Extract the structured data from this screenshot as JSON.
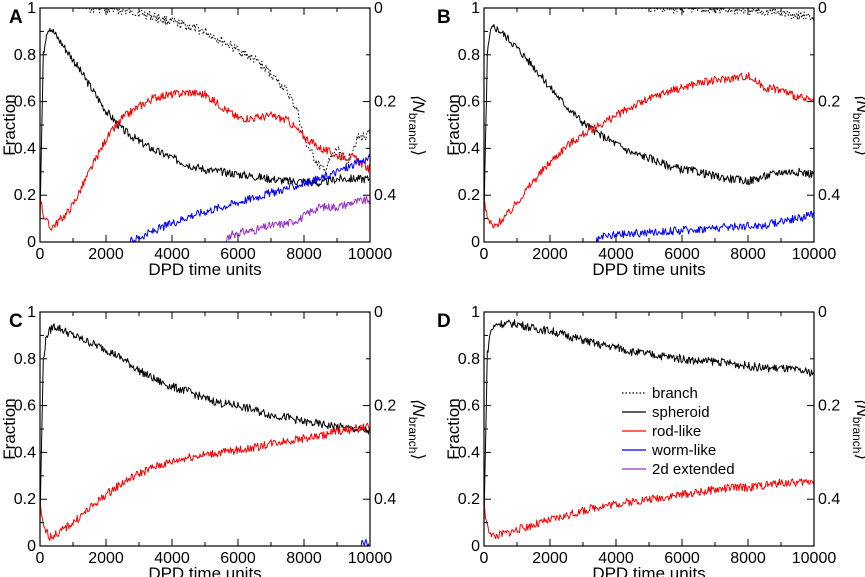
{
  "colors": {
    "branch": "#000000",
    "spheroid": "#000000",
    "rod-like": "#ff0000",
    "worm-like": "#0000ff",
    "2d extended": "#9932cc"
  },
  "legend": [
    "branch",
    "spheroid",
    "rod-like",
    "worm-like",
    "2d extended"
  ],
  "chart_data": [
    {
      "panel": "A",
      "type": "line",
      "xlabel": "DPD time units",
      "ylabel": "Fraction",
      "ylabel_right": "⟨N",
      "ylabel_right_sub": "branch",
      "ylabel_right_close": "⟩",
      "xlim": [
        0,
        10000
      ],
      "ylim": [
        0,
        1
      ],
      "ylim_right": [
        0,
        0.5
      ],
      "x_ticks": [
        "0",
        "2000",
        "4000",
        "6000",
        "8000",
        "10000"
      ],
      "y_ticks": [
        "0",
        "0.2",
        "0.4",
        "0.6",
        "0.8",
        "1"
      ],
      "y_ticks_right": [
        "0",
        "0.2",
        "0.4"
      ],
      "series": [
        {
          "name": "branch",
          "style": "dotted",
          "axis": "right",
          "x": [
            0,
            500,
            1000,
            2000,
            3000,
            4000,
            5000,
            5500,
            6000,
            6500,
            7000,
            7500,
            7800,
            8000,
            8300,
            8600,
            9000,
            9300,
            9600,
            10000
          ],
          "values": [
            0,
            0,
            0,
            0.002,
            0.01,
            0.03,
            0.05,
            0.07,
            0.09,
            0.11,
            0.14,
            0.18,
            0.22,
            0.28,
            0.32,
            0.35,
            0.3,
            0.33,
            0.28,
            0.27
          ]
        },
        {
          "name": "spheroid",
          "style": "solid",
          "x": [
            0,
            100,
            200,
            300,
            400,
            600,
            800,
            1000,
            1500,
            2000,
            2500,
            3000,
            3500,
            4000,
            4500,
            5000,
            5500,
            6000,
            6500,
            7000,
            7500,
            8000,
            8500,
            9000,
            9500,
            10000
          ],
          "values": [
            0.1,
            0.8,
            0.9,
            0.92,
            0.9,
            0.86,
            0.82,
            0.78,
            0.67,
            0.56,
            0.48,
            0.43,
            0.39,
            0.36,
            0.33,
            0.31,
            0.3,
            0.29,
            0.28,
            0.27,
            0.26,
            0.26,
            0.25,
            0.27,
            0.27,
            0.27
          ]
        },
        {
          "name": "rod-like",
          "style": "solid",
          "x": [
            0,
            100,
            300,
            500,
            800,
            1000,
            1500,
            2000,
            2500,
            3000,
            3500,
            4000,
            4500,
            5000,
            5500,
            6000,
            6500,
            7000,
            7500,
            8000,
            8500,
            9000,
            9500,
            10000
          ],
          "values": [
            0.2,
            0.12,
            0.06,
            0.08,
            0.12,
            0.16,
            0.3,
            0.44,
            0.53,
            0.58,
            0.62,
            0.63,
            0.64,
            0.63,
            0.58,
            0.53,
            0.53,
            0.54,
            0.52,
            0.45,
            0.4,
            0.37,
            0.36,
            0.31
          ]
        },
        {
          "name": "worm-like",
          "style": "solid",
          "x": [
            0,
            2700,
            3000,
            3500,
            4000,
            4500,
            5000,
            5500,
            6000,
            6500,
            7000,
            7500,
            8000,
            8500,
            9000,
            9500,
            10000
          ],
          "values": [
            0,
            0,
            0.02,
            0.05,
            0.08,
            0.11,
            0.13,
            0.15,
            0.17,
            0.19,
            0.21,
            0.23,
            0.25,
            0.27,
            0.3,
            0.33,
            0.36
          ]
        },
        {
          "name": "2d extended",
          "style": "solid",
          "x": [
            0,
            5600,
            5800,
            6000,
            6500,
            7000,
            7500,
            7900,
            8200,
            8500,
            9000,
            9500,
            10000
          ],
          "values": [
            0,
            0,
            0.03,
            0.04,
            0.05,
            0.07,
            0.08,
            0.1,
            0.13,
            0.15,
            0.15,
            0.17,
            0.18
          ]
        }
      ]
    },
    {
      "panel": "B",
      "type": "line",
      "xlabel": "DPD time units",
      "ylabel": "Fraction",
      "ylabel_right": "⟨N",
      "ylabel_right_sub": "branch",
      "ylabel_right_close": "⟩",
      "xlim": [
        0,
        10000
      ],
      "ylim": [
        0,
        1
      ],
      "ylim_right": [
        0,
        0.5
      ],
      "x_ticks": [
        "0",
        "2000",
        "4000",
        "6000",
        "8000",
        "10000"
      ],
      "y_ticks": [
        "0",
        "0.2",
        "0.4",
        "0.6",
        "0.8",
        "1"
      ],
      "y_ticks_right": [
        "0",
        "0.2",
        "0.4"
      ],
      "series": [
        {
          "name": "branch",
          "style": "dotted",
          "axis": "right",
          "x": [
            0,
            2000,
            4000,
            6000,
            8000,
            9000,
            9500,
            10000
          ],
          "values": [
            0,
            0,
            0,
            0.002,
            0.005,
            0.01,
            0.015,
            0.02
          ]
        },
        {
          "name": "spheroid",
          "style": "solid",
          "x": [
            0,
            100,
            200,
            300,
            500,
            800,
            1000,
            1500,
            2000,
            2500,
            3000,
            3500,
            4000,
            4500,
            5000,
            5500,
            6000,
            6500,
            7000,
            7500,
            8000,
            8500,
            9000,
            9500,
            10000
          ],
          "values": [
            0.1,
            0.8,
            0.9,
            0.92,
            0.9,
            0.86,
            0.83,
            0.75,
            0.66,
            0.58,
            0.51,
            0.46,
            0.42,
            0.38,
            0.36,
            0.33,
            0.31,
            0.3,
            0.28,
            0.27,
            0.26,
            0.28,
            0.3,
            0.3,
            0.29
          ]
        },
        {
          "name": "rod-like",
          "style": "solid",
          "x": [
            0,
            100,
            300,
            500,
            800,
            1000,
            1500,
            2000,
            2500,
            3000,
            3500,
            4000,
            4500,
            5000,
            5500,
            6000,
            6500,
            7000,
            7500,
            8000,
            8500,
            9000,
            9500,
            10000
          ],
          "values": [
            0.18,
            0.1,
            0.06,
            0.09,
            0.13,
            0.17,
            0.26,
            0.34,
            0.41,
            0.46,
            0.5,
            0.54,
            0.58,
            0.61,
            0.64,
            0.66,
            0.68,
            0.69,
            0.7,
            0.71,
            0.66,
            0.65,
            0.62,
            0.6
          ]
        },
        {
          "name": "worm-like",
          "style": "solid",
          "x": [
            0,
            3400,
            3600,
            4000,
            5000,
            6000,
            7000,
            8000,
            8500,
            9000,
            9500,
            10000
          ],
          "values": [
            0,
            0,
            0.02,
            0.03,
            0.04,
            0.05,
            0.06,
            0.07,
            0.07,
            0.09,
            0.1,
            0.12
          ]
        }
      ]
    },
    {
      "panel": "C",
      "type": "line",
      "xlabel": "DPD time units",
      "ylabel": "Fraction",
      "ylabel_right": "⟨N",
      "ylabel_right_sub": "branch",
      "ylabel_right_close": "⟩",
      "xlim": [
        0,
        10000
      ],
      "ylim": [
        0,
        1
      ],
      "ylim_right": [
        0,
        0.5
      ],
      "x_ticks": [
        "0",
        "2000",
        "4000",
        "6000",
        "8000",
        "10000"
      ],
      "y_ticks": [
        "0",
        "0.2",
        "0.4",
        "0.6",
        "0.8",
        "1"
      ],
      "y_ticks_right": [
        "0",
        "0.2",
        "0.4"
      ],
      "series": [
        {
          "name": "spheroid",
          "style": "solid",
          "x": [
            0,
            100,
            200,
            400,
            600,
            1000,
            1500,
            2000,
            2500,
            3000,
            3500,
            4000,
            4500,
            5000,
            5500,
            6000,
            6500,
            7000,
            7500,
            8000,
            8500,
            9000,
            9500,
            10000
          ],
          "values": [
            0.1,
            0.8,
            0.9,
            0.94,
            0.93,
            0.9,
            0.87,
            0.84,
            0.8,
            0.75,
            0.71,
            0.68,
            0.66,
            0.63,
            0.61,
            0.6,
            0.58,
            0.56,
            0.55,
            0.53,
            0.52,
            0.51,
            0.5,
            0.49
          ]
        },
        {
          "name": "rod-like",
          "style": "solid",
          "x": [
            0,
            100,
            300,
            500,
            800,
            1000,
            1500,
            2000,
            2500,
            3000,
            3500,
            4000,
            4500,
            5000,
            5500,
            6000,
            6500,
            7000,
            7500,
            8000,
            8500,
            9000,
            9500,
            10000
          ],
          "values": [
            0.18,
            0.08,
            0.04,
            0.05,
            0.08,
            0.1,
            0.16,
            0.22,
            0.27,
            0.31,
            0.34,
            0.36,
            0.38,
            0.39,
            0.4,
            0.41,
            0.42,
            0.44,
            0.45,
            0.46,
            0.47,
            0.49,
            0.5,
            0.51
          ]
        },
        {
          "name": "worm-like",
          "style": "solid",
          "x": [
            0,
            9700,
            9800,
            9900,
            10000
          ],
          "values": [
            0,
            0,
            0.02,
            0.01,
            0.0
          ]
        }
      ]
    },
    {
      "panel": "D",
      "type": "line",
      "xlabel": "DPD time units",
      "ylabel": "Fraction",
      "ylabel_right": "⟨N",
      "ylabel_right_sub": "branch",
      "ylabel_right_close": "⟩",
      "xlim": [
        0,
        10000
      ],
      "ylim": [
        0,
        1
      ],
      "ylim_right": [
        0,
        0.5
      ],
      "x_ticks": [
        "0",
        "2000",
        "4000",
        "6000",
        "8000",
        "10000"
      ],
      "y_ticks": [
        "0",
        "0.2",
        "0.4",
        "0.6",
        "0.8",
        "1"
      ],
      "y_ticks_right": [
        "0",
        "0.2",
        "0.4"
      ],
      "legend": "center-right",
      "series": [
        {
          "name": "spheroid",
          "style": "solid",
          "x": [
            0,
            100,
            200,
            400,
            600,
            1000,
            1500,
            2000,
            2500,
            3000,
            3500,
            4000,
            4500,
            5000,
            5500,
            6000,
            6500,
            7000,
            7500,
            8000,
            8500,
            9000,
            9500,
            10000
          ],
          "values": [
            0.1,
            0.82,
            0.92,
            0.95,
            0.95,
            0.95,
            0.93,
            0.92,
            0.9,
            0.88,
            0.86,
            0.85,
            0.83,
            0.82,
            0.81,
            0.8,
            0.79,
            0.79,
            0.78,
            0.77,
            0.76,
            0.76,
            0.75,
            0.74
          ]
        },
        {
          "name": "rod-like",
          "style": "solid",
          "x": [
            0,
            100,
            300,
            500,
            800,
            1000,
            1500,
            2000,
            2500,
            3000,
            3500,
            4000,
            4500,
            5000,
            5500,
            6000,
            6500,
            7000,
            7500,
            8000,
            8500,
            9000,
            9500,
            10000
          ],
          "values": [
            0.18,
            0.08,
            0.04,
            0.05,
            0.06,
            0.07,
            0.09,
            0.11,
            0.13,
            0.15,
            0.17,
            0.18,
            0.19,
            0.2,
            0.21,
            0.22,
            0.23,
            0.24,
            0.25,
            0.25,
            0.26,
            0.27,
            0.27,
            0.28
          ]
        }
      ]
    }
  ]
}
